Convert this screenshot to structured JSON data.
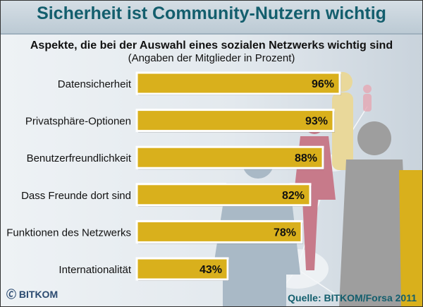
{
  "title": "Sicherheit ist Community-Nutzern wichtig",
  "subtitle": "Aspekte, die bei der Auswahl eines sozialen Netzwerks wichtig sind",
  "note": "(Angaben der Mitglieder in Prozent)",
  "logo": "BITKOM",
  "source": "Quelle: BITKOM/Forsa 2011",
  "colors": {
    "bar": "#d9b01c",
    "title": "#135e6d"
  },
  "chart_data": {
    "type": "bar",
    "orientation": "horizontal",
    "categories": [
      "Datensicherheit",
      "Privatsphäre-Optionen",
      "Benutzerfreundlichkeit",
      "Dass Freunde dort sind",
      "Funktionen des Netzwerks",
      "Internationalität"
    ],
    "values": [
      96,
      93,
      88,
      82,
      78,
      43
    ],
    "labels": [
      "96%",
      "93%",
      "88%",
      "82%",
      "78%",
      "43%"
    ],
    "unit": "%",
    "xlim": [
      0,
      100
    ],
    "grid": false
  }
}
